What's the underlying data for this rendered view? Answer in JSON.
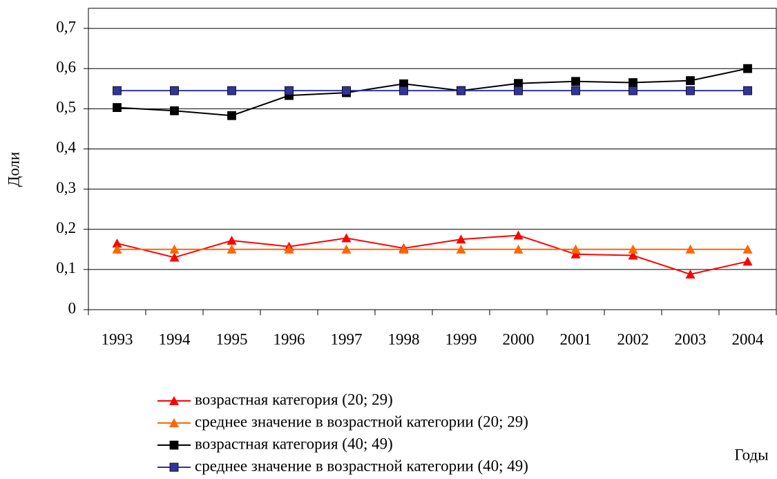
{
  "chart_data": {
    "type": "line",
    "y_label": "Доли",
    "x_label": "Годы",
    "categories": [
      "1993",
      "1994",
      "1995",
      "1996",
      "1997",
      "1998",
      "1999",
      "2000",
      "2001",
      "2002",
      "2003",
      "2004"
    ],
    "series": [
      {
        "name": "возрастная категория (20; 29)",
        "color": "#ff0000",
        "marker": "triangle",
        "values": [
          0.165,
          0.13,
          0.172,
          0.157,
          0.178,
          0.153,
          0.175,
          0.185,
          0.138,
          0.135,
          0.088,
          0.12
        ]
      },
      {
        "name": "среднее значение в возрастной категории (20; 29)",
        "color": "#ff6600",
        "marker": "triangle",
        "values": [
          0.15,
          0.15,
          0.15,
          0.15,
          0.15,
          0.15,
          0.15,
          0.15,
          0.15,
          0.15,
          0.15,
          0.15
        ]
      },
      {
        "name": "возрастная категория (40; 49)",
        "color": "#000000",
        "marker": "square",
        "values": [
          0.503,
          0.495,
          0.483,
          0.533,
          0.54,
          0.562,
          0.545,
          0.563,
          0.568,
          0.565,
          0.57,
          0.6
        ]
      },
      {
        "name": "среднее значение в возрастной категории (40; 49)",
        "color": "#333399",
        "marker": "square",
        "values": [
          0.545,
          0.545,
          0.545,
          0.545,
          0.545,
          0.545,
          0.545,
          0.545,
          0.545,
          0.545,
          0.545,
          0.545
        ]
      }
    ],
    "ylim": [
      0,
      0.75
    ],
    "yticks": [
      0,
      {
        "value": 0.1,
        "label": "0,1"
      },
      {
        "value": 0.2,
        "label": "0,2"
      },
      {
        "value": 0.3,
        "label": "0,3"
      },
      {
        "value": 0.4,
        "label": "0,4"
      },
      {
        "value": 0.5,
        "label": "0,5"
      },
      {
        "value": 0.6,
        "label": "0,6"
      },
      {
        "value": 0.7,
        "label": "0,7"
      }
    ],
    "grid": true
  }
}
